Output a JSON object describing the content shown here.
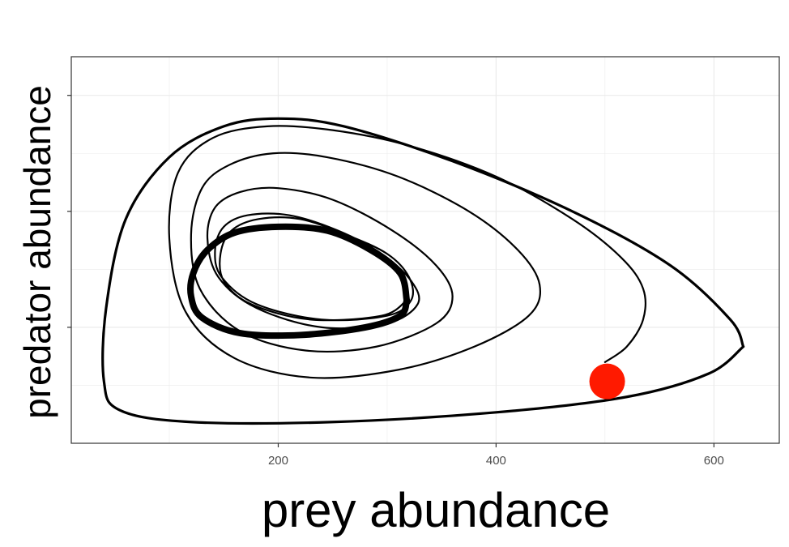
{
  "chart_data": {
    "type": "line",
    "title": "",
    "xlabel": "prey abundance",
    "ylabel": "predator abundance",
    "xlim": [
      10,
      660
    ],
    "ylim": [
      0,
      10
    ],
    "x_ticks": [
      200,
      400,
      600
    ],
    "x_tick_labels": [
      "200",
      "400",
      "600"
    ],
    "y_ticks": [
      3,
      6,
      9
    ],
    "y_tick_labels": [
      "",
      "",
      ""
    ],
    "grid": true,
    "legend": "none",
    "series": [
      {
        "description": "phase-plane trajectory spiralling inward to a limit cycle",
        "x": [
          500,
          520,
          535,
          535,
          515,
          470,
          400,
          320,
          250,
          190,
          140,
          108,
          100,
          115,
          160,
          230,
          310,
          380,
          430,
          440,
          420,
          375,
          310,
          245,
          195,
          155,
          130,
          120,
          128,
          165,
          225,
          290,
          345,
          360,
          345,
          305,
          250,
          200,
          165,
          142,
          135,
          145,
          180,
          240,
          300,
          328,
          322,
          295,
          255,
          210,
          172,
          150,
          142,
          148,
          180,
          240,
          300,
          322,
          320,
          300,
          262,
          220,
          182,
          157,
          147,
          150,
          175,
          230,
          295,
          318
        ],
        "y": [
          2.1,
          2.5,
          3.2,
          4.0,
          4.8,
          5.8,
          6.9,
          7.7,
          8.1,
          8.2,
          7.9,
          7.0,
          5.3,
          3.4,
          2.2,
          1.7,
          1.9,
          2.5,
          3.3,
          4.1,
          5.0,
          6.0,
          6.9,
          7.4,
          7.5,
          7.2,
          6.6,
          5.4,
          4.0,
          2.9,
          2.4,
          2.5,
          3.1,
          3.8,
          4.6,
          5.5,
          6.3,
          6.6,
          6.5,
          6.1,
          5.3,
          4.3,
          3.5,
          3.0,
          3.1,
          3.6,
          4.2,
          4.9,
          5.5,
          5.9,
          5.9,
          5.6,
          5.0,
          4.3,
          3.6,
          3.2,
          3.3,
          3.7,
          4.3,
          4.9,
          5.4,
          5.8,
          5.8,
          5.5,
          4.9,
          4.2,
          3.6,
          3.2,
          3.3,
          3.7
        ]
      },
      {
        "description": "outer cycles",
        "x": [
          627,
          615,
          560,
          470,
          360,
          260,
          200,
          150,
          100,
          60,
          42,
          40,
          55,
          120,
          250,
          400,
          520,
          595,
          627
        ],
        "y": [
          2.5,
          3.2,
          4.6,
          6.0,
          7.3,
          8.2,
          8.4,
          8.2,
          7.4,
          5.8,
          3.5,
          1.6,
          0.85,
          0.55,
          0.55,
          0.8,
          1.2,
          1.8,
          2.5
        ]
      },
      {
        "description": "limit cycle",
        "x": [
          318,
          312,
          285,
          245,
          200,
          160,
          135,
          122,
          120,
          130,
          165,
          220,
          280,
          312,
          318
        ],
        "y": [
          3.7,
          4.4,
          5.0,
          5.5,
          5.6,
          5.45,
          5.0,
          4.4,
          3.8,
          3.25,
          2.85,
          2.8,
          3.0,
          3.3,
          3.7
        ]
      }
    ],
    "highlight_point": {
      "x": 502,
      "y": 1.6,
      "color": "#ff1a00"
    },
    "colors": {
      "line": "#000000",
      "point": "#ff1a00",
      "grid": "#ebebeb",
      "panel_border": "#333333"
    }
  }
}
